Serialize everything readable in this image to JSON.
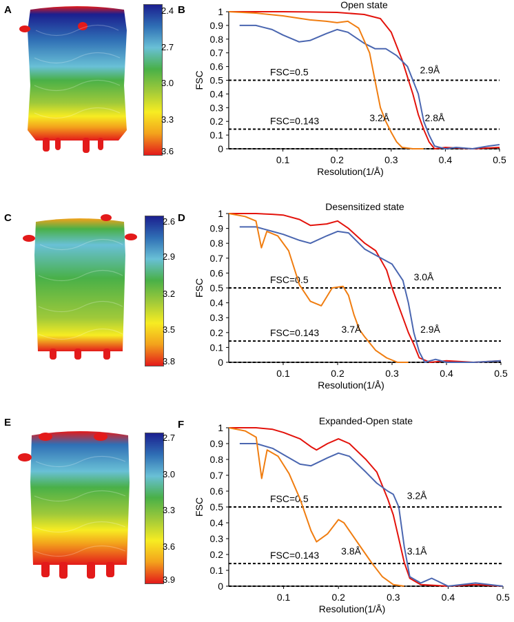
{
  "panels": [
    {
      "letter": "A",
      "colorbar": {
        "ticks": [
          "2.4",
          "2.7",
          "3.0",
          "3.3",
          "3.6"
        ]
      }
    },
    {
      "letter": "C",
      "colorbar": {
        "ticks": [
          "2.6",
          "2.9",
          "3.2",
          "3.5",
          "3.8"
        ]
      }
    },
    {
      "letter": "E",
      "colorbar": {
        "ticks": [
          "2.7",
          "3.0",
          "3.3",
          "3.6",
          "3.9"
        ]
      }
    }
  ],
  "colors": {
    "red_series": "#e3120b",
    "blue_series": "#4a66b0",
    "orange_series": "#f07d10",
    "colorbar_stops": [
      "#1b1f8f",
      "#2f6fb5",
      "#69c0d6",
      "#49b048",
      "#9fc93a",
      "#f7ec22",
      "#f3a21c",
      "#e31a1a"
    ]
  },
  "chart_data": [
    {
      "letter": "B",
      "type": "line",
      "title": "Open state",
      "xlabel": "Resolution(1/Å)",
      "ylabel": "FSC",
      "xlim": [
        0,
        0.5
      ],
      "ylim": [
        0,
        1
      ],
      "xticks": [
        "0.1",
        "0.2",
        "0.3",
        "0.4",
        "0.5"
      ],
      "yticks": [
        "0",
        "0.1",
        "0.2",
        "0.3",
        "0.4",
        "0.5",
        "0.6",
        "0.7",
        "0.8",
        "0.9",
        "1"
      ],
      "reference_lines": [
        {
          "y": 0.5,
          "label": "FSC=0.5"
        },
        {
          "y": 0.143,
          "label": "FSC=0.143"
        },
        {
          "y": 0,
          "label": ""
        }
      ],
      "annotations": [
        {
          "text": "2.9Å",
          "x": 0.353,
          "y": 0.55
        },
        {
          "text": "2.8Å",
          "x": 0.362,
          "y": 0.2
        },
        {
          "text": "3.2Å",
          "x": 0.26,
          "y": 0.2
        }
      ],
      "series": [
        {
          "color": "red",
          "x": [
            0,
            0.05,
            0.1,
            0.15,
            0.2,
            0.25,
            0.28,
            0.3,
            0.32,
            0.34,
            0.35,
            0.36,
            0.37,
            0.38,
            0.4,
            0.45,
            0.5
          ],
          "y": [
            1,
            1,
            1,
            0.998,
            0.995,
            0.98,
            0.95,
            0.85,
            0.65,
            0.4,
            0.25,
            0.14,
            0.05,
            0.0,
            0.01,
            0.0,
            0.01
          ]
        },
        {
          "color": "blue",
          "x": [
            0.02,
            0.05,
            0.08,
            0.1,
            0.13,
            0.15,
            0.18,
            0.2,
            0.22,
            0.25,
            0.27,
            0.29,
            0.31,
            0.33,
            0.35,
            0.36,
            0.37,
            0.38,
            0.4,
            0.42,
            0.45,
            0.48,
            0.5
          ],
          "y": [
            0.9,
            0.9,
            0.87,
            0.83,
            0.78,
            0.79,
            0.84,
            0.87,
            0.85,
            0.77,
            0.73,
            0.73,
            0.68,
            0.6,
            0.4,
            0.2,
            0.1,
            0.02,
            0.0,
            0.01,
            0.0,
            0.02,
            0.03
          ]
        },
        {
          "color": "orange",
          "x": [
            0,
            0.05,
            0.1,
            0.15,
            0.18,
            0.2,
            0.22,
            0.24,
            0.26,
            0.27,
            0.28,
            0.29,
            0.3,
            0.31,
            0.32,
            0.34,
            0.36
          ],
          "y": [
            1,
            0.99,
            0.97,
            0.94,
            0.93,
            0.92,
            0.93,
            0.88,
            0.7,
            0.5,
            0.3,
            0.2,
            0.12,
            0.05,
            0.01,
            0.0,
            0.0
          ]
        }
      ]
    },
    {
      "letter": "D",
      "type": "line",
      "title": "Desensitized state",
      "xlabel": "Resolution(1/Å)",
      "ylabel": "FSC",
      "xlim": [
        0,
        0.5
      ],
      "ylim": [
        0,
        1
      ],
      "xticks": [
        "0.1",
        "0.2",
        "0.3",
        "0.4",
        "0.5"
      ],
      "yticks": [
        "0",
        "0.1",
        "0.2",
        "0.3",
        "0.4",
        "0.5",
        "0.6",
        "0.7",
        "0.8",
        "0.9",
        "1"
      ],
      "reference_lines": [
        {
          "y": 0.5,
          "label": "FSC=0.5"
        },
        {
          "y": 0.143,
          "label": "FSC=0.143"
        },
        {
          "y": 0,
          "label": ""
        }
      ],
      "annotations": [
        {
          "text": "3.0Å",
          "x": 0.34,
          "y": 0.55
        },
        {
          "text": "2.9Å",
          "x": 0.352,
          "y": 0.2
        },
        {
          "text": "3.7Å",
          "x": 0.207,
          "y": 0.2
        }
      ],
      "series": [
        {
          "color": "red",
          "x": [
            0,
            0.05,
            0.08,
            0.1,
            0.13,
            0.15,
            0.18,
            0.2,
            0.22,
            0.25,
            0.27,
            0.29,
            0.3,
            0.31,
            0.32,
            0.33,
            0.34,
            0.35,
            0.37,
            0.4,
            0.45,
            0.5
          ],
          "y": [
            1,
            1,
            0.995,
            0.99,
            0.96,
            0.92,
            0.93,
            0.95,
            0.9,
            0.8,
            0.75,
            0.62,
            0.5,
            0.4,
            0.3,
            0.2,
            0.12,
            0.03,
            0.0,
            0.01,
            0.0,
            0.01
          ]
        },
        {
          "color": "blue",
          "x": [
            0.02,
            0.05,
            0.08,
            0.1,
            0.13,
            0.15,
            0.18,
            0.2,
            0.22,
            0.25,
            0.27,
            0.29,
            0.3,
            0.32,
            0.33,
            0.34,
            0.35,
            0.36,
            0.38,
            0.4,
            0.45,
            0.5
          ],
          "y": [
            0.91,
            0.91,
            0.88,
            0.86,
            0.82,
            0.8,
            0.85,
            0.88,
            0.87,
            0.76,
            0.72,
            0.68,
            0.66,
            0.55,
            0.4,
            0.2,
            0.07,
            0.0,
            0.02,
            0.0,
            0.0,
            0.01
          ]
        },
        {
          "color": "orange",
          "x": [
            0,
            0.03,
            0.05,
            0.06,
            0.07,
            0.09,
            0.11,
            0.13,
            0.15,
            0.17,
            0.19,
            0.21,
            0.22,
            0.23,
            0.24,
            0.25,
            0.27,
            0.29,
            0.31,
            0.33
          ],
          "y": [
            1,
            0.98,
            0.95,
            0.77,
            0.88,
            0.85,
            0.75,
            0.52,
            0.41,
            0.38,
            0.5,
            0.51,
            0.45,
            0.32,
            0.22,
            0.17,
            0.08,
            0.03,
            0.0,
            0.0
          ]
        }
      ]
    },
    {
      "letter": "F",
      "type": "line",
      "title": "Expanded-Open state",
      "xlabel": "Resolution(1/Å)",
      "ylabel": "FSC",
      "xlim": [
        0,
        0.5
      ],
      "ylim": [
        0,
        1
      ],
      "xticks": [
        "0.1",
        "0.2",
        "0.3",
        "0.4",
        "0.5"
      ],
      "yticks": [
        "0",
        "0.1",
        "0.2",
        "0.3",
        "0.4",
        "0.5",
        "0.6",
        "0.7",
        "0.8",
        "0.9",
        "1"
      ],
      "reference_lines": [
        {
          "y": 0.5,
          "label": "FSC=0.5"
        },
        {
          "y": 0.143,
          "label": "FSC=0.143"
        },
        {
          "y": 0,
          "label": ""
        }
      ],
      "annotations": [
        {
          "text": "3.2Å",
          "x": 0.325,
          "y": 0.55
        },
        {
          "text": "3.1Å",
          "x": 0.325,
          "y": 0.2
        },
        {
          "text": "3.8Å",
          "x": 0.205,
          "y": 0.2
        }
      ],
      "series": [
        {
          "color": "red",
          "x": [
            0,
            0.05,
            0.08,
            0.1,
            0.13,
            0.15,
            0.16,
            0.18,
            0.2,
            0.22,
            0.25,
            0.27,
            0.29,
            0.3,
            0.31,
            0.32,
            0.33,
            0.35,
            0.4,
            0.45,
            0.5
          ],
          "y": [
            1,
            1,
            0.99,
            0.97,
            0.93,
            0.88,
            0.86,
            0.9,
            0.93,
            0.9,
            0.8,
            0.72,
            0.55,
            0.45,
            0.3,
            0.15,
            0.05,
            0.01,
            0.0,
            0.01,
            0.0
          ]
        },
        {
          "color": "blue",
          "x": [
            0.02,
            0.05,
            0.08,
            0.1,
            0.13,
            0.15,
            0.18,
            0.2,
            0.22,
            0.25,
            0.27,
            0.29,
            0.3,
            0.31,
            0.32,
            0.33,
            0.35,
            0.37,
            0.4,
            0.45,
            0.5
          ],
          "y": [
            0.9,
            0.9,
            0.87,
            0.83,
            0.77,
            0.76,
            0.81,
            0.84,
            0.82,
            0.72,
            0.65,
            0.6,
            0.58,
            0.5,
            0.25,
            0.06,
            0.02,
            0.05,
            0.0,
            0.02,
            0.0
          ]
        },
        {
          "color": "orange",
          "x": [
            0,
            0.03,
            0.05,
            0.06,
            0.07,
            0.09,
            0.11,
            0.13,
            0.15,
            0.16,
            0.18,
            0.2,
            0.21,
            0.22,
            0.24,
            0.26,
            0.28,
            0.3,
            0.32
          ],
          "y": [
            1,
            0.98,
            0.94,
            0.68,
            0.86,
            0.82,
            0.71,
            0.55,
            0.35,
            0.28,
            0.33,
            0.42,
            0.4,
            0.35,
            0.25,
            0.15,
            0.06,
            0.01,
            0.0
          ]
        }
      ]
    }
  ]
}
